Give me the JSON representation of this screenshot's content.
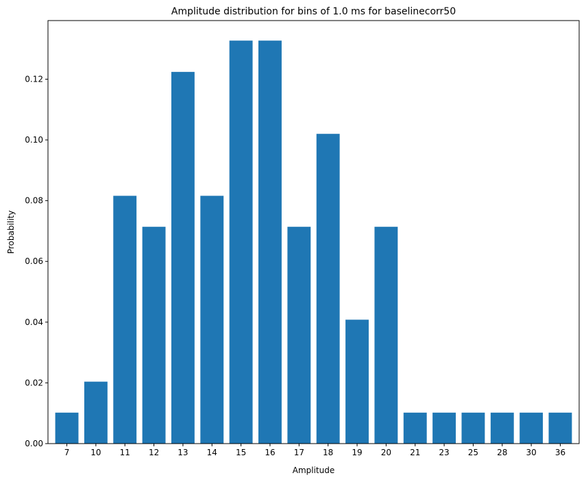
{
  "chart_data": {
    "type": "bar",
    "title": "Amplitude distribution for bins of 1.0 ms for baselinecorr50",
    "xlabel": "Amplitude",
    "ylabel": "Probability",
    "categories": [
      "7",
      "10",
      "11",
      "12",
      "13",
      "14",
      "15",
      "16",
      "17",
      "18",
      "19",
      "20",
      "21",
      "23",
      "25",
      "28",
      "30",
      "36"
    ],
    "values": [
      0.0102,
      0.0204,
      0.0816,
      0.0714,
      0.1224,
      0.0816,
      0.1327,
      0.1327,
      0.0714,
      0.102,
      0.0408,
      0.0714,
      0.0102,
      0.0102,
      0.0102,
      0.0102,
      0.0102,
      0.0102
    ],
    "ylim": [
      0,
      0.1393
    ],
    "yticks": [
      0.0,
      0.02,
      0.04,
      0.06,
      0.08,
      0.1,
      0.12
    ],
    "ytick_labels": [
      "0.00",
      "0.02",
      "0.04",
      "0.06",
      "0.08",
      "0.10",
      "0.12"
    ],
    "bar_color": "#1f77b4",
    "grid": false,
    "legend": "none"
  }
}
